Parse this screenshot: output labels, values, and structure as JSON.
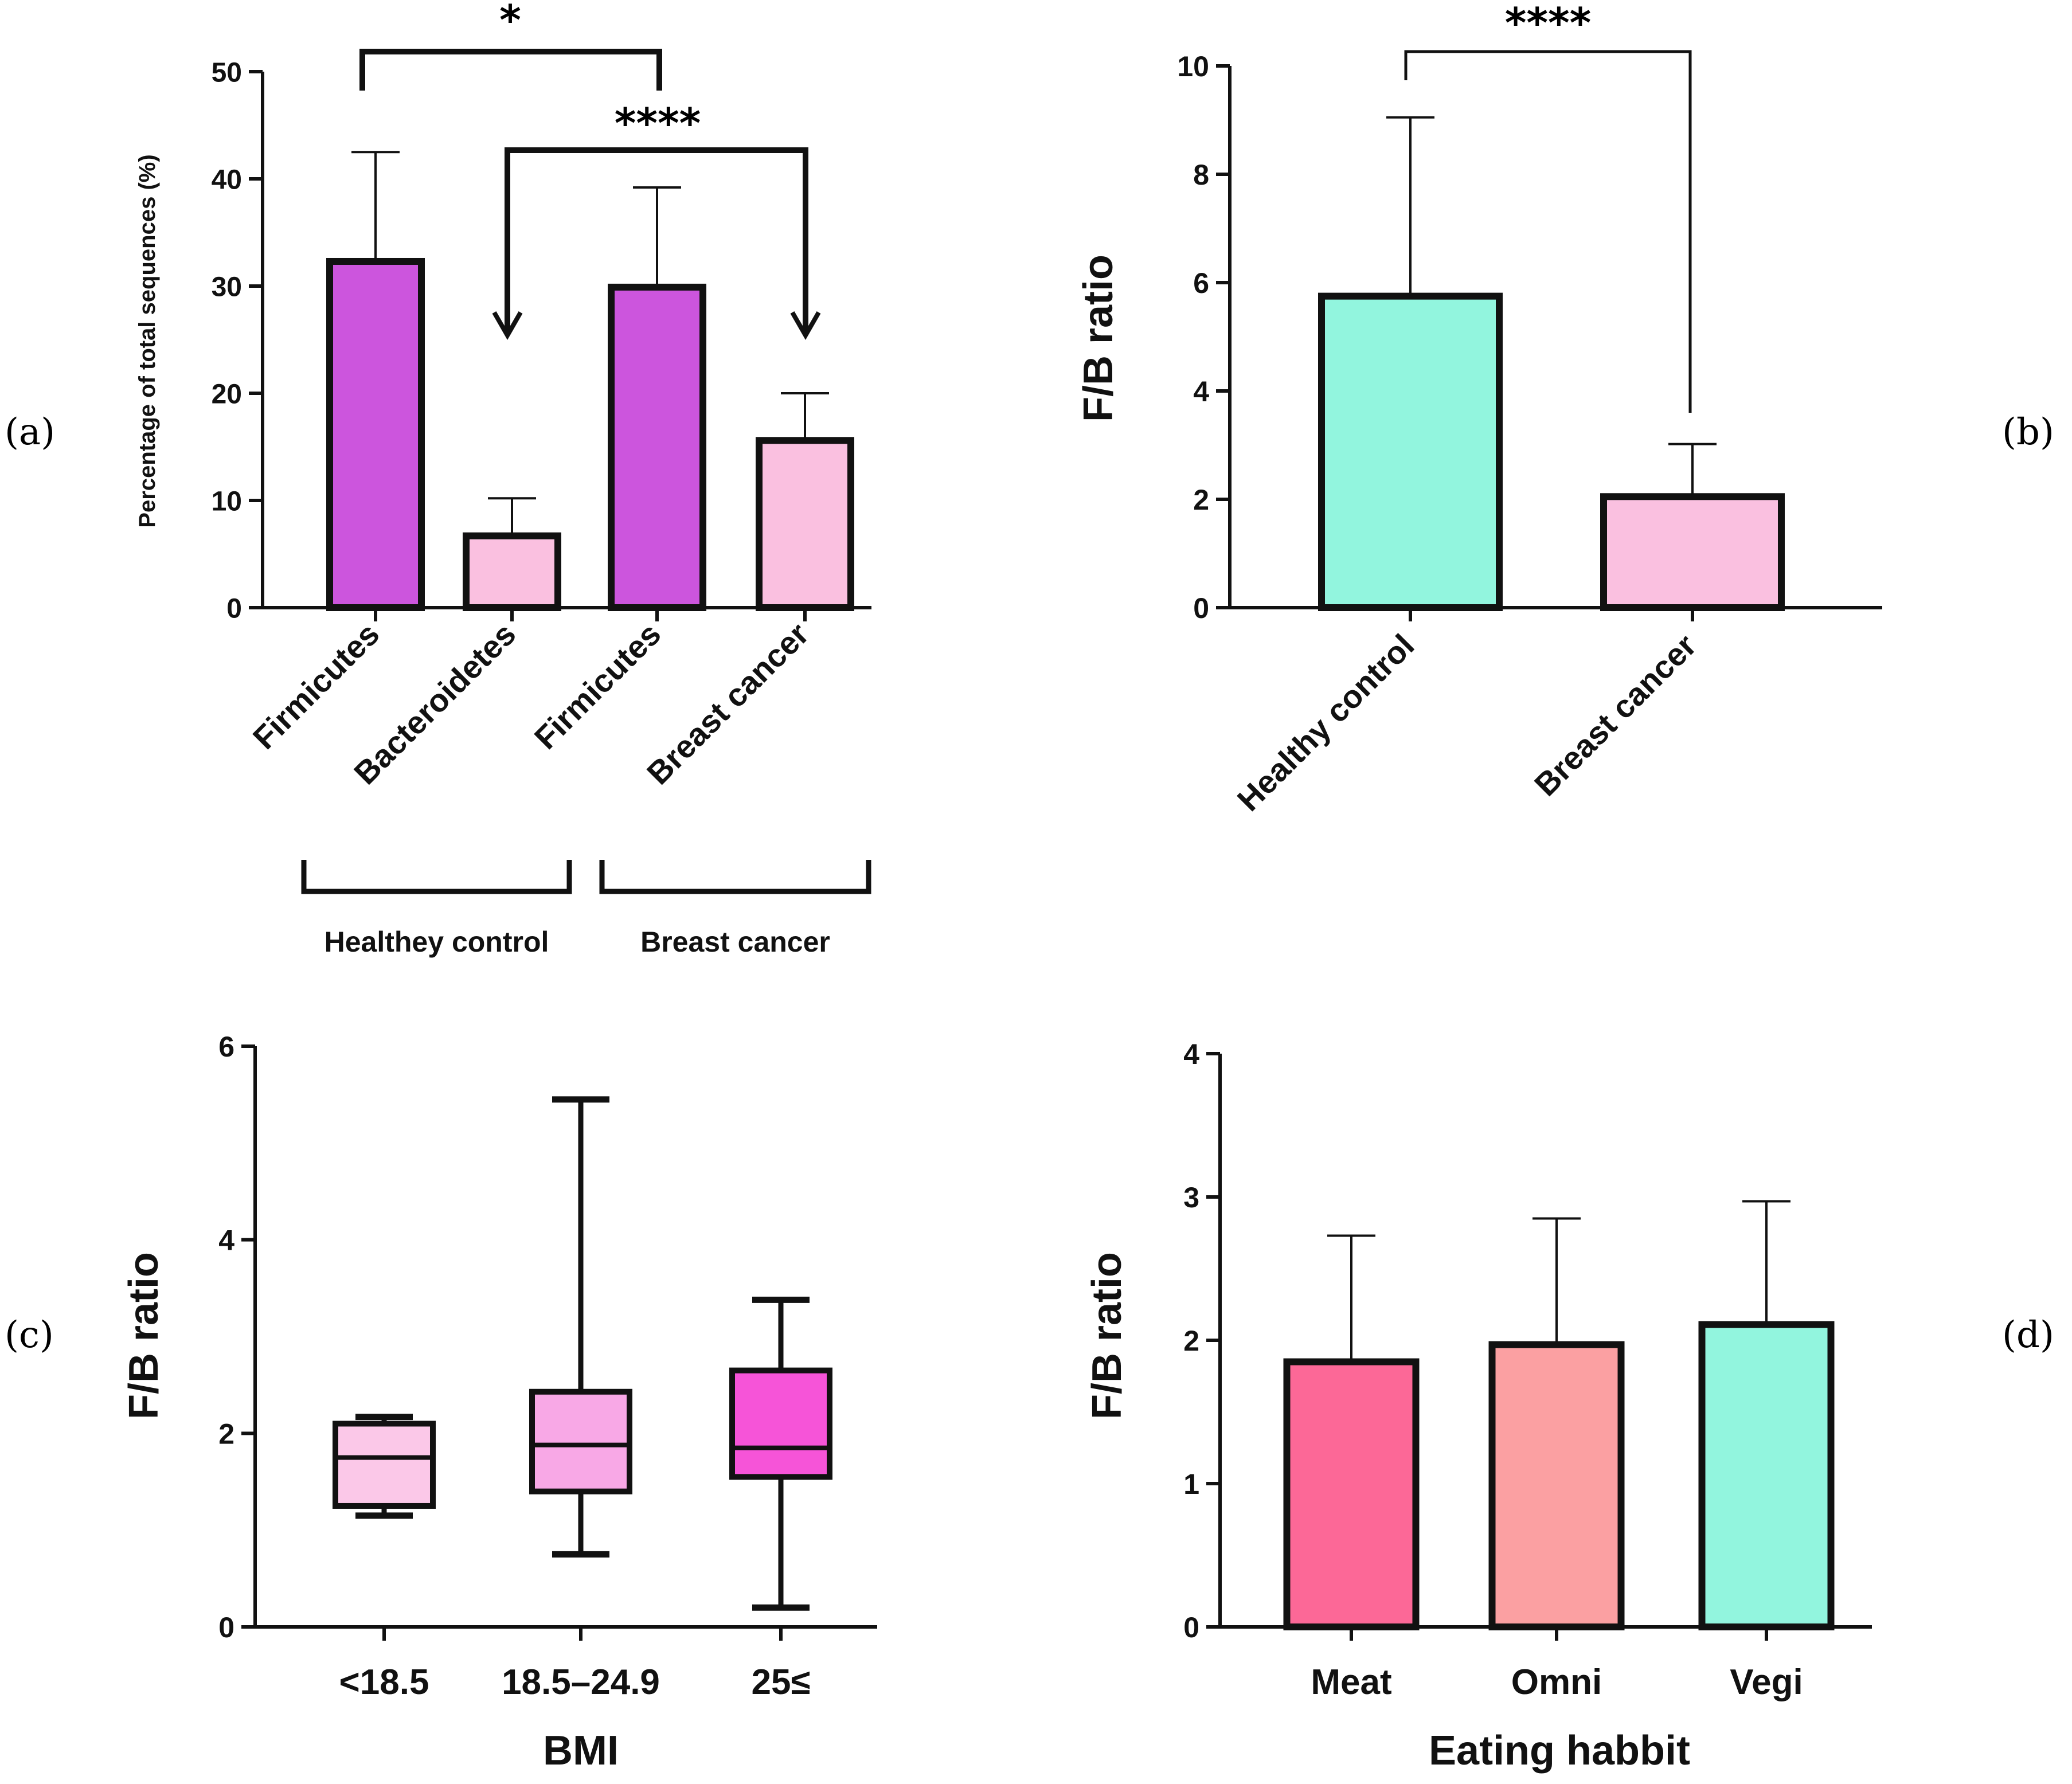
{
  "colors": {
    "purple": "#cc55dd",
    "light_pink": "#fac0e0",
    "teal": "#92f5de",
    "box_light": "#fbc8e8",
    "box_mid": "#f8a8e6",
    "box_hot": "#f654d8",
    "meat": "#fc6897",
    "omni": "#fba0a2",
    "vegi": "#92f5de",
    "line": "#111111"
  },
  "chart_data": [
    {
      "panel": "(a)",
      "type": "bar",
      "ylabel": "Percentage of total sequences (%)",
      "ylim": [
        0,
        50
      ],
      "yticks": [
        "0",
        "10",
        "20",
        "30",
        "40",
        "50"
      ],
      "categories": [
        "Firmicutes",
        "Bacteroidetes",
        "Firmicutes",
        "Breast cancer"
      ],
      "values": [
        32.3,
        6.7,
        29.9,
        15.6
      ],
      "errors": [
        10.2,
        3.5,
        9.3,
        4.4
      ],
      "bar_colors": [
        "purple",
        "light_pink",
        "purple",
        "light_pink"
      ],
      "groups": [
        {
          "label": "Healthey control"
        },
        {
          "label": "Breast cancer"
        }
      ],
      "significance": [
        {
          "label": "*",
          "from": 0,
          "to": 2
        },
        {
          "label": "****",
          "from": 1,
          "to": 3
        }
      ]
    },
    {
      "panel": "(b)",
      "type": "bar",
      "ylabel": "F/B ratio",
      "ylim": [
        0,
        10
      ],
      "yticks": [
        "0",
        "2",
        "4",
        "6",
        "8",
        "10"
      ],
      "categories": [
        "Healthy control",
        "Breast cancer"
      ],
      "values": [
        5.75,
        2.05
      ],
      "errors": [
        3.3,
        0.97
      ],
      "bar_colors": [
        "teal",
        "light_pink"
      ],
      "significance": [
        {
          "label": "****",
          "from": 0,
          "to": 1
        }
      ]
    },
    {
      "panel": "(c)",
      "type": "box",
      "ylabel": "F/B ratio",
      "xlabel": "BMI",
      "ylim": [
        0,
        6
      ],
      "yticks": [
        "0",
        "2",
        "4",
        "6"
      ],
      "categories": [
        "<18.5",
        "18.5–24.9",
        "25≤"
      ],
      "boxes": [
        {
          "min": 1.15,
          "q1": 1.25,
          "median": 1.75,
          "q3": 2.1,
          "max": 2.17
        },
        {
          "min": 0.75,
          "q1": 1.4,
          "median": 1.88,
          "q3": 2.43,
          "max": 5.45
        },
        {
          "min": 0.2,
          "q1": 1.55,
          "median": 1.85,
          "q3": 2.65,
          "max": 3.38
        }
      ],
      "box_colors": [
        "box_light",
        "box_mid",
        "box_hot"
      ]
    },
    {
      "panel": "(d)",
      "type": "bar",
      "ylabel": "F/B ratio",
      "xlabel": "Eating habbit",
      "ylim": [
        0,
        4
      ],
      "yticks": [
        "0",
        "1",
        "2",
        "3",
        "4"
      ],
      "categories": [
        "Meat",
        "Omni",
        "Vegi"
      ],
      "values": [
        1.85,
        1.97,
        2.11
      ],
      "errors": [
        0.88,
        0.88,
        0.86
      ],
      "bar_colors": [
        "meat",
        "omni",
        "vegi"
      ]
    }
  ]
}
